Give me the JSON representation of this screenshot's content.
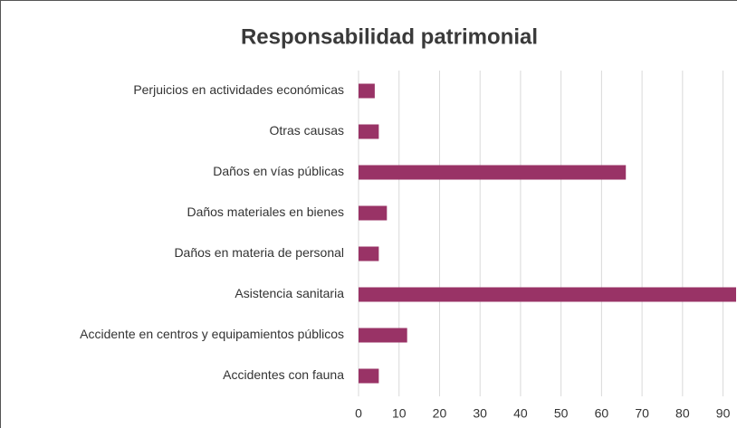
{
  "chart_data": {
    "type": "barh",
    "title": "Responsabilidad patrimonial",
    "categories": [
      "Perjuicios en actividades económicas",
      "Otras causas",
      "Daños en vías públicas",
      "Daños materiales en bienes",
      "Daños en materia de personal",
      "Asistencia sanitaria",
      "Accidente en centros y equipamientos públicos",
      "Accidentes con fauna"
    ],
    "values": [
      4,
      5,
      66,
      7,
      5,
      95,
      12,
      5
    ],
    "color": "#993366",
    "xlim": [
      0,
      93
    ],
    "xticks": [
      0,
      10,
      20,
      30,
      40,
      50,
      60,
      70,
      80,
      90
    ],
    "grid": true
  }
}
